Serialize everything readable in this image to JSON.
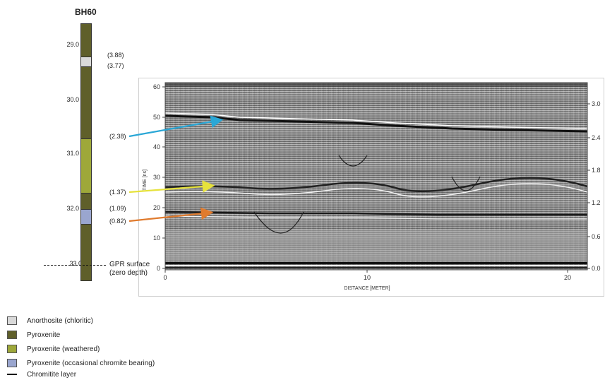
{
  "borehole": {
    "title": "BH60",
    "depth_ticks": [
      "29.0",
      "30.0",
      "31.0",
      "32.0",
      "33.0"
    ],
    "layer_annotations": [
      "(3.88)",
      "(3.77)",
      "(2.38)",
      "(1.37)",
      "(1.09)",
      "(0.82)"
    ],
    "gpr_surface_line1": "GPR surface",
    "gpr_surface_line2": "(zero depth)",
    "colors": {
      "pyroxenite": "#5f5f2a",
      "anorthosite": "#d9d9d9",
      "weathered": "#9ea83a",
      "chromite_bearing": "#9aa6cf"
    }
  },
  "radargram": {
    "y_left_ticks": [
      "0",
      "10",
      "20",
      "30",
      "40",
      "50",
      "60"
    ],
    "y_left_label": "TIME [ns]",
    "y_right_ticks": [
      "0.0",
      "0.6",
      "1.2",
      "1.8",
      "2.4",
      "3.0"
    ],
    "x_ticks": [
      "0",
      "10",
      "20"
    ],
    "x_label": "DISTANCE [METER]",
    "arrow_colors": [
      "#2aa7d6",
      "#e6e23c",
      "#e07b2e"
    ]
  },
  "legend": [
    {
      "label": "Anorthosite (chloritic)",
      "color": "#d9d9d9"
    },
    {
      "label": "Pyroxenite",
      "color": "#5f5f2a"
    },
    {
      "label": "Pyroxenite (weathered)",
      "color": "#9ea83a"
    },
    {
      "label": "Pyroxenite (occasional chromite bearing)",
      "color": "#9aa6cf"
    },
    {
      "label": "Chromitite layer",
      "color": "#111111"
    }
  ]
}
